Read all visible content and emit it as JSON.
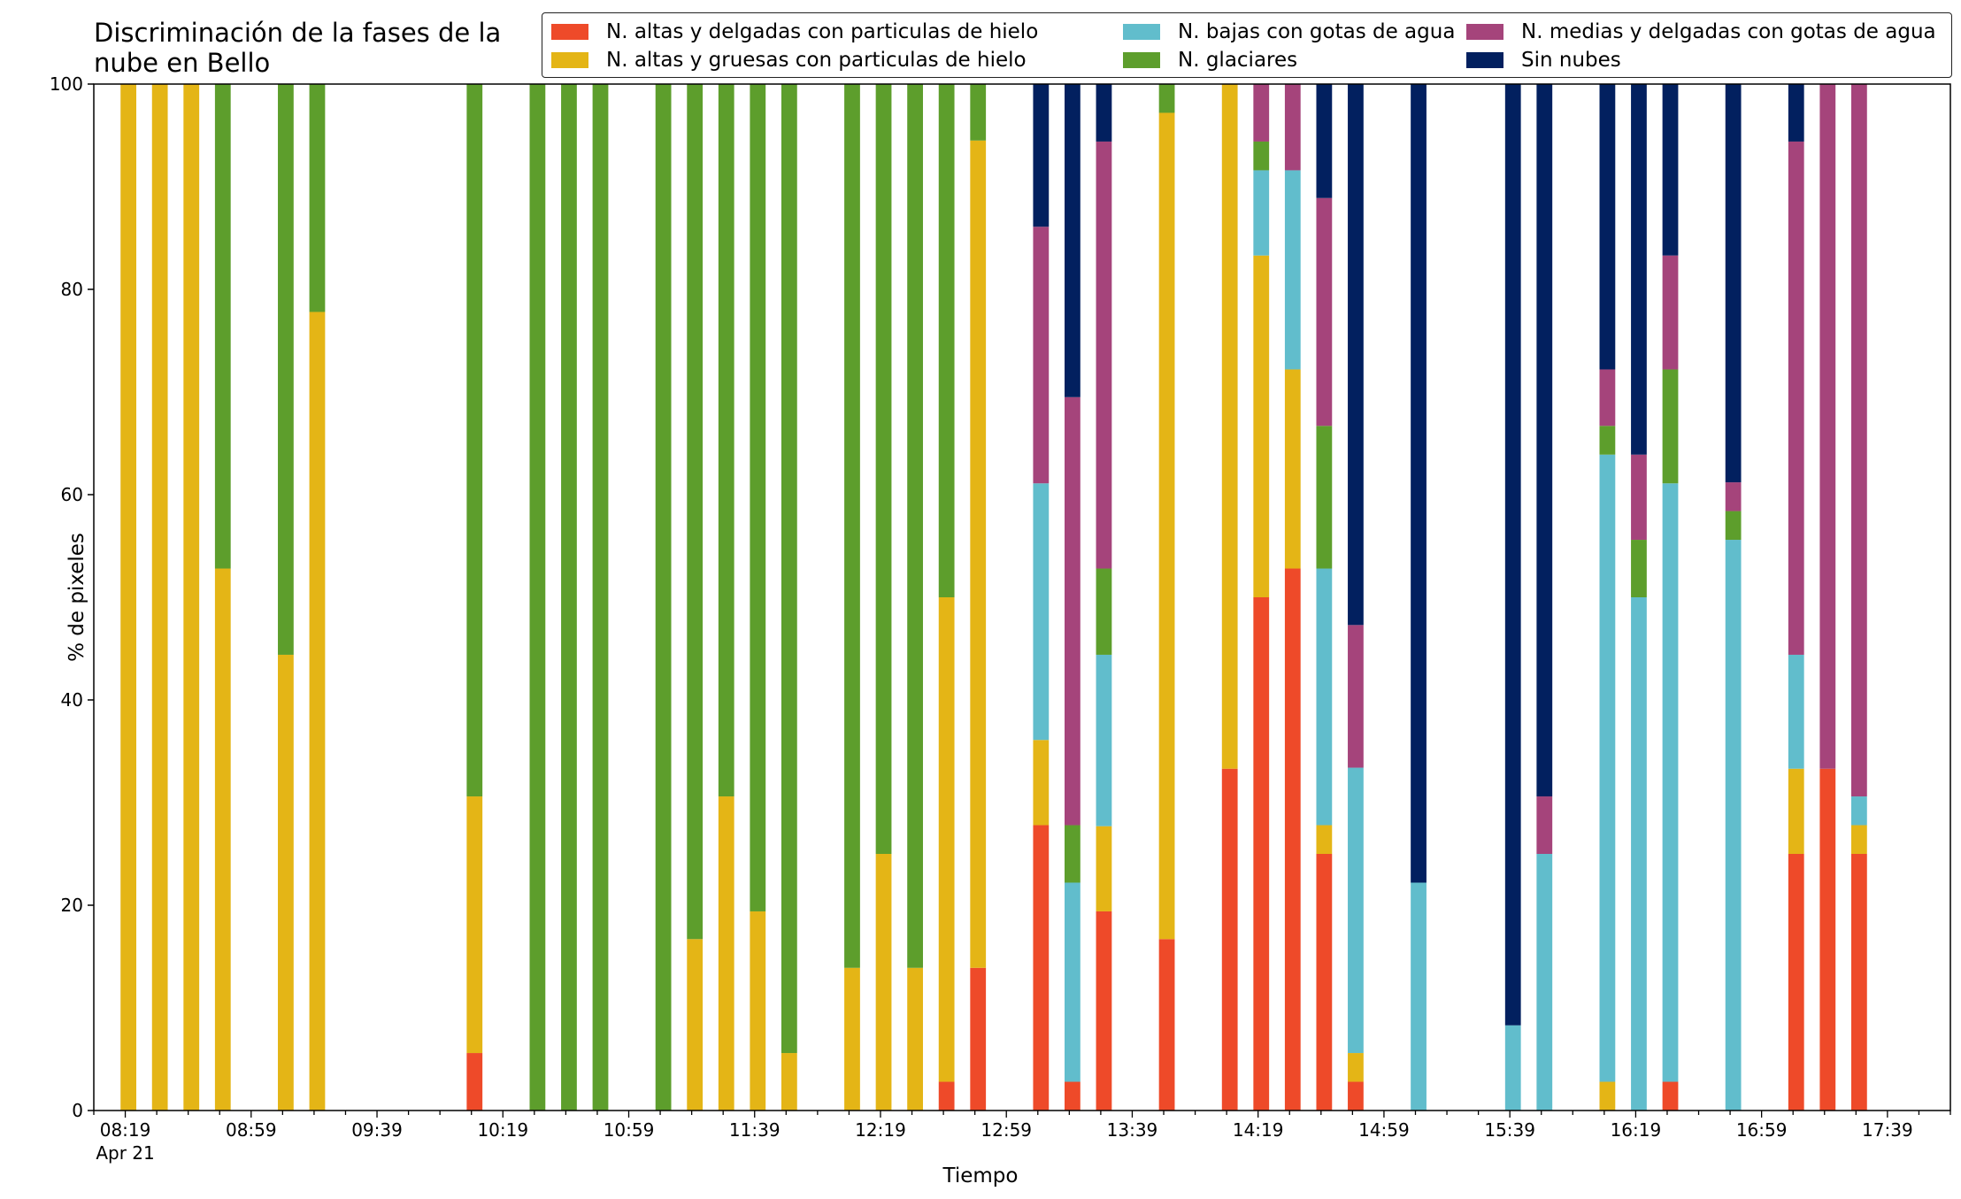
{
  "chart_data": {
    "type": "bar",
    "stacked": true,
    "title": "Discriminación de la fases de la\nnube en Bello",
    "xlabel": "Tiempo",
    "ylabel": "% de pixeles",
    "ylim": [
      0,
      100
    ],
    "yticks": [
      0,
      20,
      40,
      60,
      80,
      100
    ],
    "xtick_labels": [
      "08:19",
      "08:59",
      "09:39",
      "10:19",
      "10:59",
      "11:39",
      "12:19",
      "12:59",
      "13:39",
      "14:19",
      "14:59",
      "15:39",
      "16:19",
      "16:59",
      "17:39"
    ],
    "x_date_label": "Apr 21",
    "legend_position": "top-right",
    "series": [
      {
        "name": "N. altas y delgadas con particulas de hielo",
        "color": "#ee4a29"
      },
      {
        "name": "N. altas y gruesas con particulas de hielo",
        "color": "#e4b516"
      },
      {
        "name": "N. bajas con gotas de agua",
        "color": "#61bdcc"
      },
      {
        "name": "N. glaciares",
        "color": "#5d9e2c"
      },
      {
        "name": "N. medias y delgadas con gotas de agua",
        "color": "#a5447b"
      },
      {
        "name": "Sin nubes",
        "color": "#02205f"
      }
    ],
    "bars": [
      {
        "time": "08:20",
        "values": [
          0,
          100,
          0,
          0,
          0,
          0
        ]
      },
      {
        "time": "08:30",
        "values": [
          0,
          100,
          0,
          0,
          0,
          0
        ]
      },
      {
        "time": "08:40",
        "values": [
          0,
          100,
          0,
          0,
          0,
          0
        ]
      },
      {
        "time": "08:50",
        "values": [
          0,
          52.8,
          0,
          47.2,
          0,
          0
        ]
      },
      {
        "time": "09:10",
        "values": [
          0,
          44.4,
          0,
          55.6,
          0,
          0
        ]
      },
      {
        "time": "09:20",
        "values": [
          0,
          77.8,
          0,
          22.2,
          0,
          0
        ]
      },
      {
        "time": "10:10",
        "values": [
          5.6,
          25.0,
          0,
          69.4,
          0,
          0
        ]
      },
      {
        "time": "10:30",
        "values": [
          0,
          0,
          0,
          100,
          0,
          0
        ]
      },
      {
        "time": "10:40",
        "values": [
          0,
          0,
          0,
          100,
          0,
          0
        ]
      },
      {
        "time": "10:50",
        "values": [
          0,
          0,
          0,
          100,
          0,
          0
        ]
      },
      {
        "time": "11:10",
        "values": [
          0,
          0,
          0,
          100,
          0,
          0
        ]
      },
      {
        "time": "11:20",
        "values": [
          0,
          16.7,
          0,
          83.3,
          0,
          0
        ]
      },
      {
        "time": "11:30",
        "values": [
          0,
          30.6,
          0,
          69.4,
          0,
          0
        ]
      },
      {
        "time": "11:40",
        "values": [
          0,
          19.4,
          0,
          80.6,
          0,
          0
        ]
      },
      {
        "time": "11:50",
        "values": [
          0,
          5.6,
          0,
          94.4,
          0,
          0
        ]
      },
      {
        "time": "12:10",
        "values": [
          0,
          13.9,
          0,
          86.1,
          0,
          0
        ]
      },
      {
        "time": "12:20",
        "values": [
          0,
          25.0,
          0,
          75.0,
          0,
          0
        ]
      },
      {
        "time": "12:30",
        "values": [
          0,
          13.9,
          0,
          86.1,
          0,
          0
        ]
      },
      {
        "time": "12:40",
        "values": [
          2.8,
          47.2,
          0,
          50.0,
          0,
          0
        ]
      },
      {
        "time": "12:50",
        "values": [
          13.9,
          80.6,
          0,
          5.5,
          0,
          0
        ]
      },
      {
        "time": "13:10",
        "values": [
          27.8,
          8.3,
          25.0,
          0,
          25.0,
          13.9
        ]
      },
      {
        "time": "13:20",
        "values": [
          2.8,
          0,
          19.4,
          5.6,
          41.7,
          30.5
        ]
      },
      {
        "time": "13:30",
        "values": [
          19.4,
          8.3,
          16.7,
          8.4,
          41.6,
          5.6
        ]
      },
      {
        "time": "13:50",
        "values": [
          16.7,
          80.5,
          0,
          2.8,
          0,
          0
        ]
      },
      {
        "time": "14:10",
        "values": [
          33.3,
          66.7,
          0,
          0,
          0,
          0
        ]
      },
      {
        "time": "14:20",
        "values": [
          50.0,
          33.3,
          8.3,
          2.8,
          5.6,
          0
        ]
      },
      {
        "time": "14:30",
        "values": [
          52.8,
          19.4,
          19.4,
          0,
          8.4,
          0
        ]
      },
      {
        "time": "14:40",
        "values": [
          25.0,
          2.8,
          25.0,
          13.9,
          22.2,
          11.1
        ]
      },
      {
        "time": "14:50",
        "values": [
          2.8,
          2.8,
          27.8,
          0,
          13.9,
          52.7
        ]
      },
      {
        "time": "15:10",
        "values": [
          0,
          0,
          22.2,
          0,
          0,
          77.8
        ]
      },
      {
        "time": "15:40",
        "values": [
          0,
          0,
          8.3,
          0,
          0,
          91.7
        ]
      },
      {
        "time": "15:50",
        "values": [
          0,
          0,
          25.0,
          0,
          5.6,
          69.4
        ]
      },
      {
        "time": "16:10",
        "values": [
          0,
          2.8,
          61.1,
          2.8,
          5.5,
          27.8
        ]
      },
      {
        "time": "16:20",
        "values": [
          0,
          0,
          50.0,
          5.6,
          8.3,
          36.1
        ]
      },
      {
        "time": "16:30",
        "values": [
          2.8,
          0,
          58.3,
          11.1,
          11.1,
          16.7
        ]
      },
      {
        "time": "16:50",
        "values": [
          0,
          0,
          55.6,
          2.8,
          2.8,
          38.8
        ]
      },
      {
        "time": "17:10",
        "values": [
          25.0,
          8.3,
          11.1,
          0,
          50.0,
          5.6
        ]
      },
      {
        "time": "17:20",
        "values": [
          33.3,
          0,
          0,
          0,
          66.7,
          0
        ]
      },
      {
        "time": "17:30",
        "values": [
          25.0,
          2.8,
          2.8,
          0,
          69.4,
          0
        ]
      }
    ]
  }
}
